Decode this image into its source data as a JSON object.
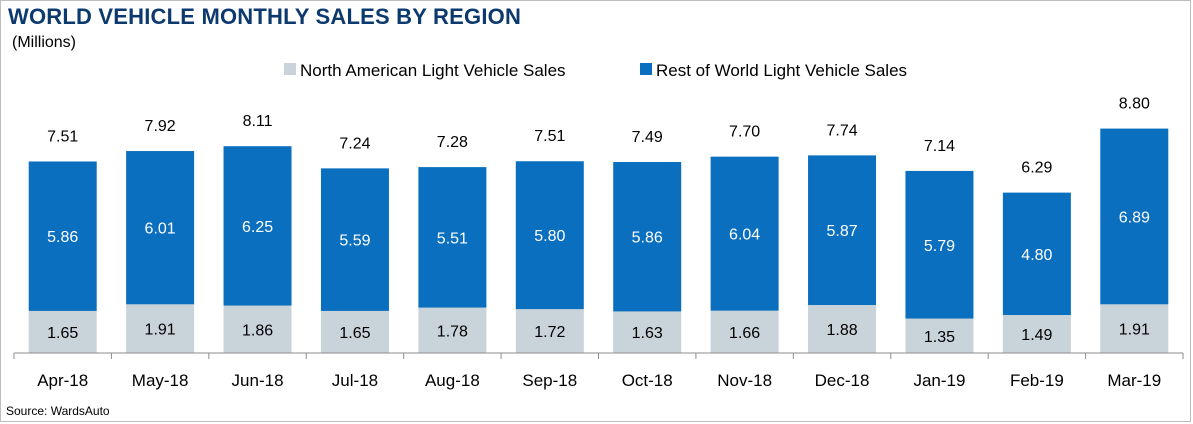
{
  "title": "WORLD VEHICLE MONTHLY SALES BY REGION",
  "subtitle": "(Millions)",
  "source": "Source: WardsAuto",
  "colors": {
    "north_america": "#c9d3da",
    "rest_of_world": "#0a6fbf",
    "title": "#0d3a6e"
  },
  "chart_data": {
    "type": "bar",
    "stacked": true,
    "categories": [
      "Apr-18",
      "May-18",
      "Jun-18",
      "Jul-18",
      "Aug-18",
      "Sep-18",
      "Oct-18",
      "Nov-18",
      "Dec-18",
      "Jan-19",
      "Feb-19",
      "Mar-19"
    ],
    "series": [
      {
        "name": "North American Light Vehicle Sales",
        "values": [
          1.65,
          1.91,
          1.86,
          1.65,
          1.78,
          1.72,
          1.63,
          1.66,
          1.88,
          1.35,
          1.49,
          1.91
        ]
      },
      {
        "name": "Rest of World Light Vehicle Sales",
        "values": [
          5.86,
          6.01,
          6.25,
          5.59,
          5.51,
          5.8,
          5.86,
          6.04,
          5.87,
          5.79,
          4.8,
          6.89
        ]
      }
    ],
    "totals": [
      "7.51",
      "7.92",
      "8.11",
      "7.24",
      "7.28",
      "7.51",
      "7.49",
      "7.70",
      "7.74",
      "7.14",
      "6.29",
      "8.80"
    ],
    "value_labels": {
      "north_america": [
        "1.65",
        "1.91",
        "1.86",
        "1.65",
        "1.78",
        "1.72",
        "1.63",
        "1.66",
        "1.88",
        "1.35",
        "1.49",
        "1.91"
      ],
      "rest_of_world": [
        "5.86",
        "6.01",
        "6.25",
        "5.59",
        "5.51",
        "5.80",
        "5.86",
        "6.04",
        "5.87",
        "5.79",
        "4.80",
        "6.89"
      ]
    },
    "ylim": [
      0,
      8.8
    ],
    "grid": false,
    "legend": "top"
  }
}
